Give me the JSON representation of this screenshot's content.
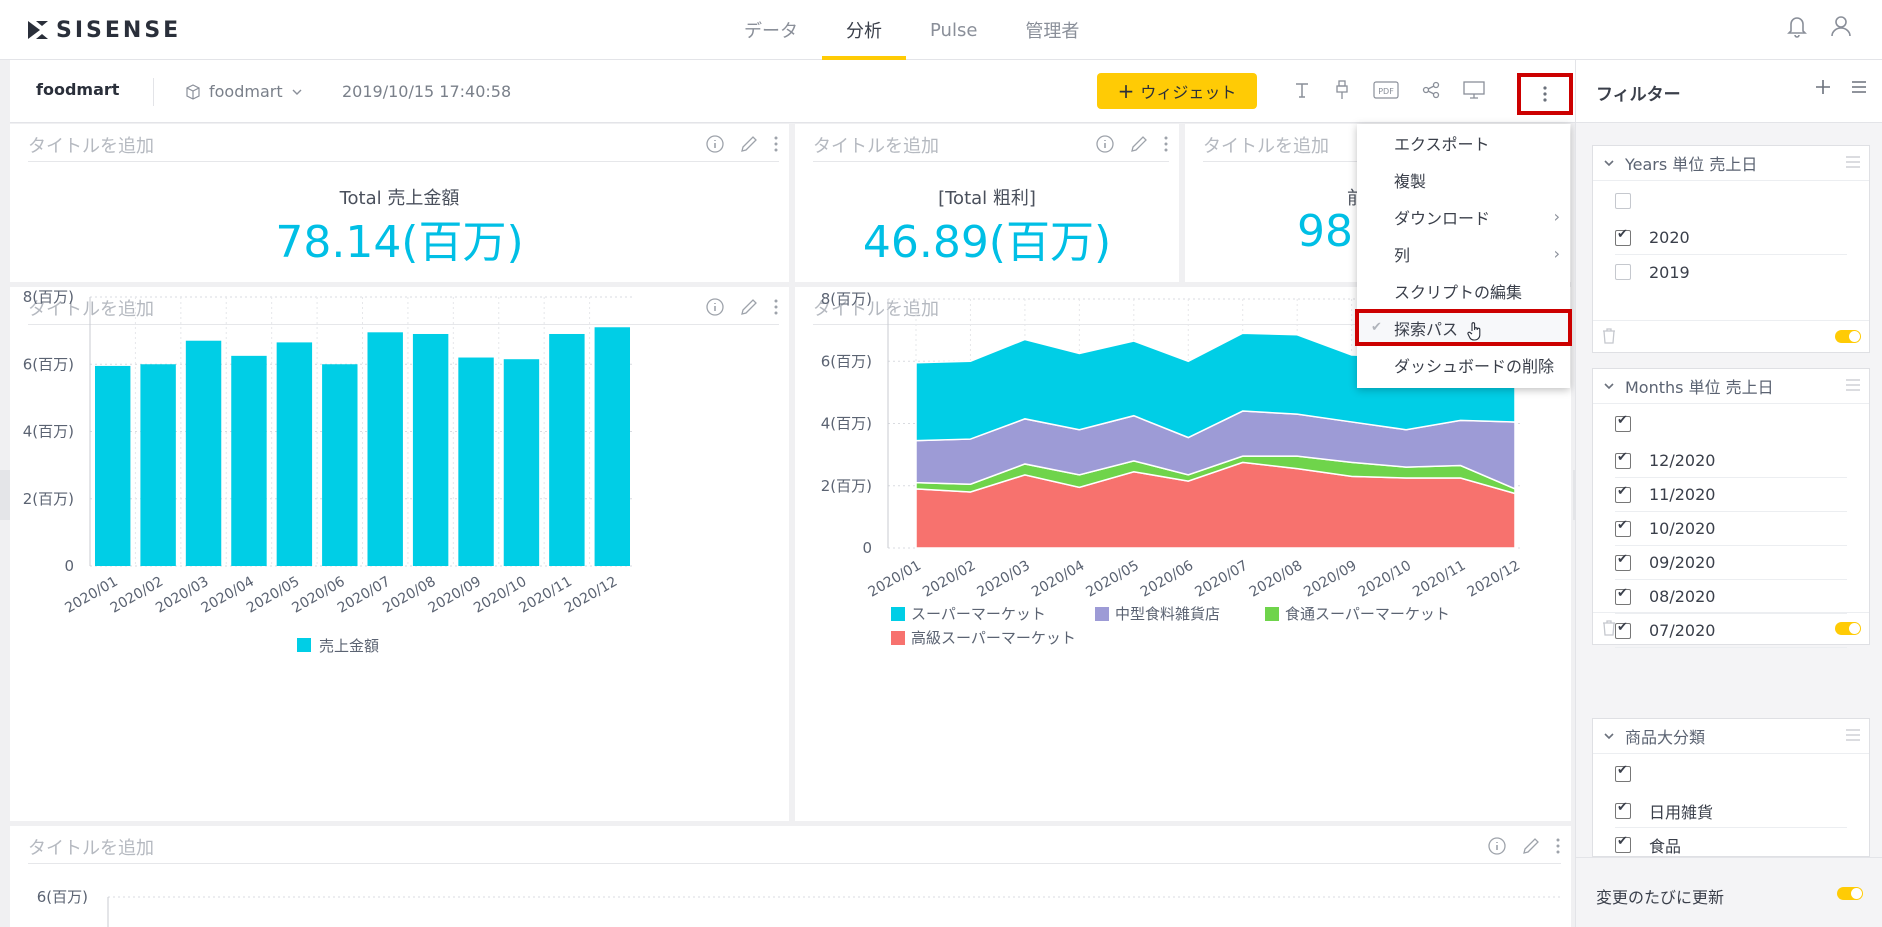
{
  "brand": {
    "name": "SISENSE"
  },
  "nav": {
    "tabs": [
      {
        "label": "データ"
      },
      {
        "label": "分析"
      },
      {
        "label": "Pulse"
      },
      {
        "label": "管理者"
      }
    ]
  },
  "dashboard": {
    "title": "foodmart",
    "datasource": "foodmart",
    "timestamp": "2019/10/15 17:40:58",
    "widget_button": "ウィジェット",
    "pdf_label": "PDF"
  },
  "more_menu": {
    "items": [
      {
        "label": "エクスポート",
        "arrow": ""
      },
      {
        "label": "複製",
        "arrow": ""
      },
      {
        "label": "ダウンロード",
        "arrow": "›"
      },
      {
        "label": "列",
        "arrow": "›"
      },
      {
        "label": "スクリプトの編集",
        "arrow": ""
      },
      {
        "label": "探索パス",
        "arrow": ""
      },
      {
        "label": "ダッシュボードの削除",
        "arrow": ""
      }
    ]
  },
  "widgets": {
    "placeholder_title": "タイトルを追加",
    "kpi1": {
      "label": "Total 売上金額",
      "value": "78.14(百万)"
    },
    "kpi2": {
      "label": "[Total 粗利]",
      "value": "46.89(百万)"
    },
    "kpi3": {
      "label": "前",
      "value": "98."
    }
  },
  "filters": {
    "title": "フィルター",
    "years": {
      "title": "Years 単位 売上日",
      "items": [
        {
          "label": "2020",
          "checked": true
        },
        {
          "label": "2019",
          "checked": false
        }
      ]
    },
    "months": {
      "title": "Months 単位 売上日",
      "items": [
        {
          "label": "12/2020"
        },
        {
          "label": "11/2020"
        },
        {
          "label": "10/2020"
        },
        {
          "label": "09/2020"
        },
        {
          "label": "08/2020"
        },
        {
          "label": "07/2020"
        }
      ]
    },
    "category": {
      "title": "商品大分類",
      "items": [
        {
          "label": "日用雑貨"
        },
        {
          "label": "食品"
        }
      ]
    },
    "auto_update": "変更のたびに更新"
  },
  "colors": {
    "accent": "#ffcb05",
    "cyan": "#00cee6",
    "purple": "#9d9bd6",
    "green": "#6fd44b",
    "salmon": "#f7726e",
    "highlight": "#cc0000"
  },
  "chart_data": [
    {
      "type": "bar",
      "title": "",
      "categories": [
        "2020/01",
        "2020/02",
        "2020/03",
        "2020/04",
        "2020/05",
        "2020/06",
        "2020/07",
        "2020/08",
        "2020/09",
        "2020/10",
        "2020/11",
        "2020/12"
      ],
      "series": [
        {
          "name": "売上金額",
          "values": [
            5.95,
            6.0,
            6.7,
            6.25,
            6.65,
            6.0,
            6.95,
            6.9,
            6.2,
            6.15,
            6.9,
            7.1
          ]
        }
      ],
      "yticks": [
        "0",
        "2(百万)",
        "4(百万)",
        "6(百万)",
        "8(百万)"
      ],
      "ylim": [
        0,
        8
      ],
      "grid": true,
      "legend": "bottom"
    },
    {
      "type": "area",
      "title": "",
      "stacked": true,
      "categories": [
        "2020/01",
        "2020/02",
        "2020/03",
        "2020/04",
        "2020/05",
        "2020/06",
        "2020/07",
        "2020/08",
        "2020/09",
        "2020/10",
        "2020/11",
        "2020/12"
      ],
      "series": [
        {
          "name": "高級スーパーマーケット",
          "values": [
            1.9,
            1.8,
            2.35,
            1.95,
            2.45,
            2.15,
            2.75,
            2.55,
            2.3,
            2.25,
            2.25,
            1.75
          ]
        },
        {
          "name": "食通スーパーマーケット",
          "values": [
            0.2,
            0.25,
            0.35,
            0.4,
            0.35,
            0.2,
            0.2,
            0.4,
            0.45,
            0.35,
            0.4,
            0.15
          ]
        },
        {
          "name": "中型食料雑貨店",
          "values": [
            1.35,
            1.45,
            1.45,
            1.45,
            1.45,
            1.2,
            1.45,
            1.35,
            1.3,
            1.2,
            1.45,
            2.15
          ]
        },
        {
          "name": "スーパーマーケット",
          "values": [
            2.5,
            2.5,
            2.55,
            2.45,
            2.4,
            2.45,
            2.5,
            2.55,
            2.15,
            2.35,
            2.75,
            3.05
          ]
        }
      ],
      "legend_order": [
        "スーパーマーケット",
        "中型食料雑貨店",
        "食通スーパーマーケット",
        "高級スーパーマーケット"
      ],
      "yticks": [
        "0",
        "2(百万)",
        "4(百万)",
        "6(百万)",
        "8(百万)"
      ],
      "ylim": [
        0,
        8
      ],
      "grid": true,
      "legend": "bottom"
    },
    {
      "type": "line",
      "title": "",
      "yticks": [
        "6(百万)"
      ],
      "note": "partially visible"
    }
  ]
}
